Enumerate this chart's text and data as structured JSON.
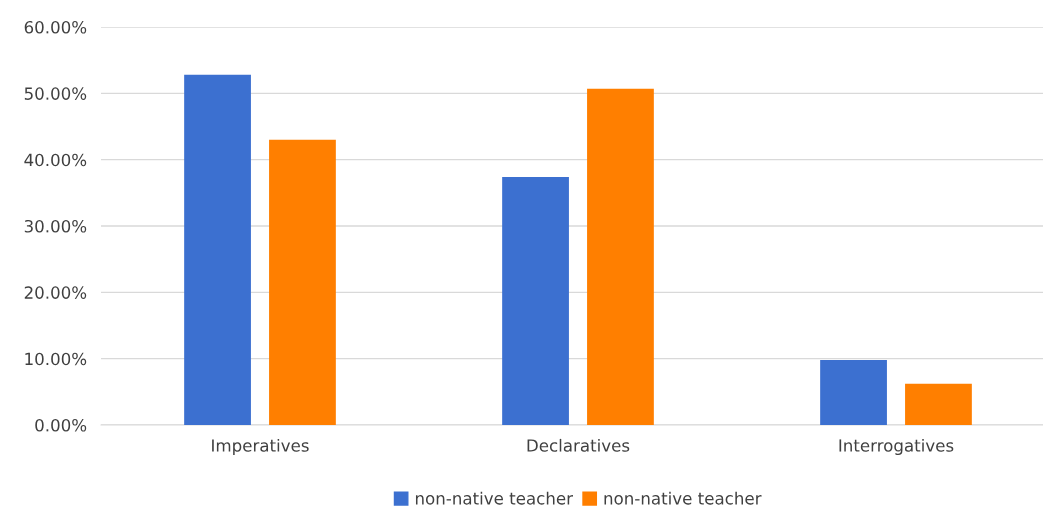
{
  "chart_data": {
    "type": "bar",
    "categories": [
      "Imperatives",
      "Declaratives",
      "Interrogatives"
    ],
    "series": [
      {
        "name": "non-native teacher",
        "color": "#3c70d0",
        "values": [
          52.8,
          37.4,
          9.8
        ]
      },
      {
        "name": "non-native teacher",
        "color": "#ff7f00",
        "values": [
          43.0,
          50.7,
          6.2
        ]
      }
    ],
    "ylim": [
      0,
      60
    ],
    "yticks": [
      {
        "value": 0,
        "label": "0.00%"
      },
      {
        "value": 10,
        "label": "10.00%"
      },
      {
        "value": 20,
        "label": "20.00%"
      },
      {
        "value": 30,
        "label": "30.00%"
      },
      {
        "value": 40,
        "label": "40.00%"
      },
      {
        "value": 50,
        "label": "50.00%"
      },
      {
        "value": 60,
        "label": "60.00%"
      }
    ],
    "grid": "y",
    "legend": "bottom"
  }
}
